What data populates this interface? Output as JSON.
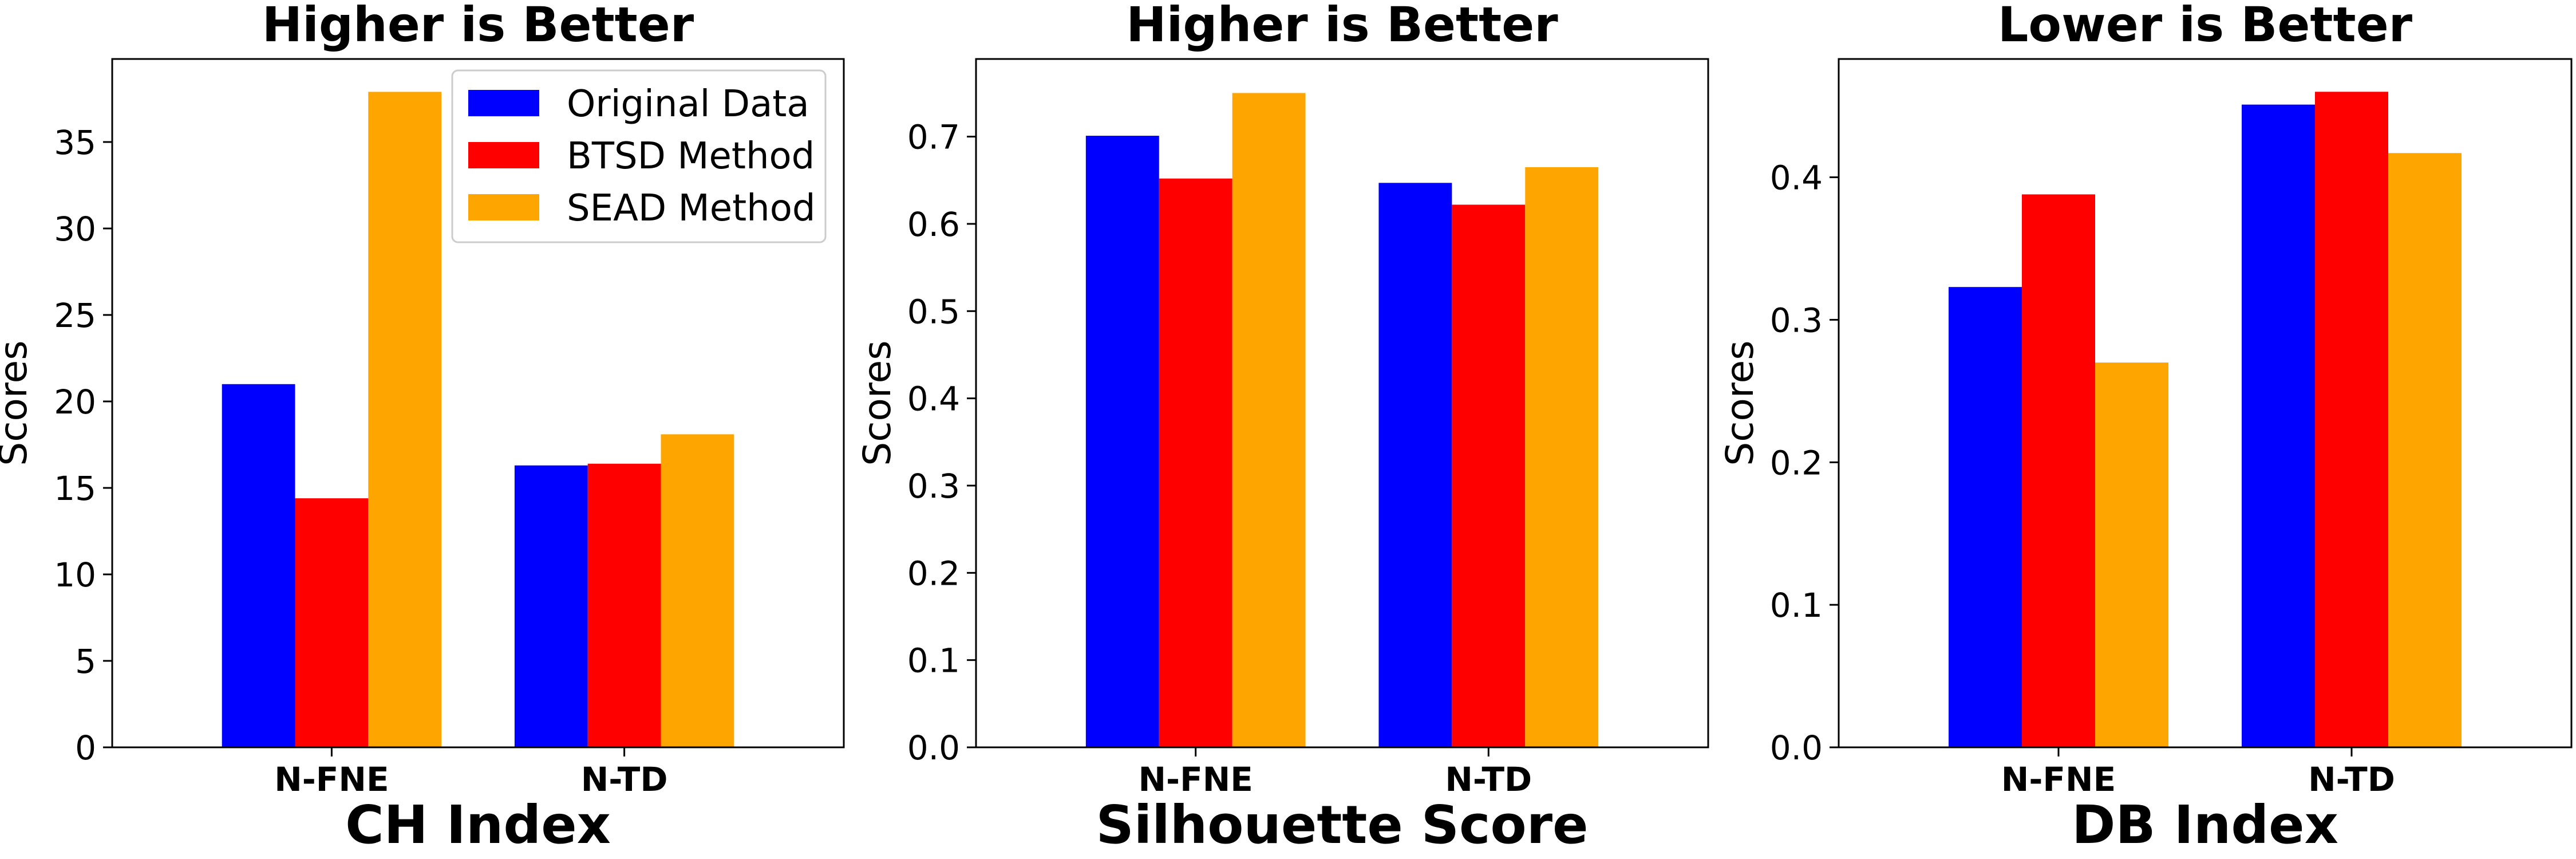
{
  "chart_data": [
    {
      "type": "bar",
      "title": "Higher is Better",
      "xlabel": "CH Index",
      "ylabel": "Scores",
      "categories": [
        "N-FNE",
        "N-TD"
      ],
      "ylim": [
        0,
        39.8
      ],
      "yticks": [
        0,
        5,
        10,
        15,
        20,
        25,
        30,
        35
      ],
      "yticklabels": [
        "0",
        "5",
        "10",
        "15",
        "20",
        "25",
        "30",
        "35"
      ],
      "series": [
        {
          "name": "Original Data",
          "color": "#0000ff",
          "values": [
            21.0,
            16.3
          ]
        },
        {
          "name": "BTSD Method",
          "color": "#ff0000",
          "values": [
            14.4,
            16.4
          ]
        },
        {
          "name": "SEAD Method",
          "color": "#ffa500",
          "values": [
            37.9,
            18.1
          ]
        }
      ],
      "legend": "top-right",
      "grid": false
    },
    {
      "type": "bar",
      "title": "Higher is Better",
      "xlabel": "Silhouette Score",
      "ylabel": "Scores",
      "categories": [
        "N-FNE",
        "N-TD"
      ],
      "ylim": [
        0,
        0.789
      ],
      "yticks": [
        0,
        0.1,
        0.2,
        0.3,
        0.4,
        0.5,
        0.6,
        0.7
      ],
      "yticklabels": [
        "0.0",
        "0.1",
        "0.2",
        "0.3",
        "0.4",
        "0.5",
        "0.6",
        "0.7"
      ],
      "series": [
        {
          "name": "Original Data",
          "color": "#0000ff",
          "values": [
            0.701,
            0.647
          ]
        },
        {
          "name": "BTSD Method",
          "color": "#ff0000",
          "values": [
            0.652,
            0.622
          ]
        },
        {
          "name": "SEAD Method",
          "color": "#ffa500",
          "values": [
            0.75,
            0.665
          ]
        }
      ],
      "grid": false
    },
    {
      "type": "bar",
      "title": "Lower is Better",
      "xlabel": "DB Index",
      "ylabel": "Scores",
      "categories": [
        "N-FNE",
        "N-TD"
      ],
      "ylim": [
        0,
        0.483
      ],
      "yticks": [
        0,
        0.1,
        0.2,
        0.3,
        0.4
      ],
      "yticklabels": [
        "0.0",
        "0.1",
        "0.2",
        "0.3",
        "0.4"
      ],
      "series": [
        {
          "name": "Original Data",
          "color": "#0000ff",
          "values": [
            0.323,
            0.451
          ]
        },
        {
          "name": "BTSD Method",
          "color": "#ff0000",
          "values": [
            0.388,
            0.46
          ]
        },
        {
          "name": "SEAD Method",
          "color": "#ffa500",
          "values": [
            0.27,
            0.417
          ]
        }
      ],
      "grid": false
    }
  ]
}
